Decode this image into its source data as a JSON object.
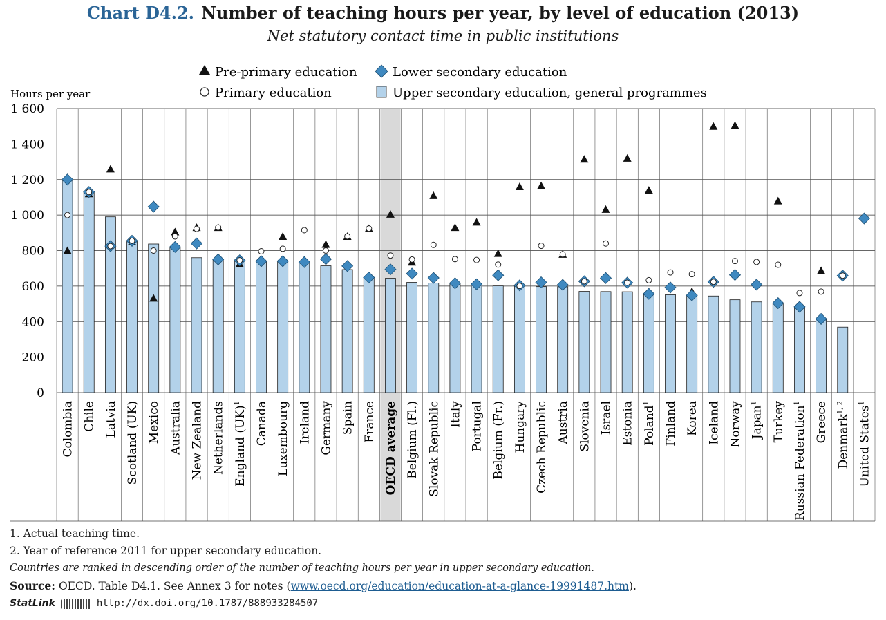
{
  "title": {
    "label": "Chart D4.2.",
    "text": "Number of teaching hours per year, by level of education (2013)"
  },
  "subtitle": "Net statutory contact time in public institutions",
  "legend": {
    "pre_primary": "Pre-primary education",
    "primary": "Primary education",
    "lower_secondary": "Lower secondary education",
    "upper_secondary": "Upper secondary education, general programmes"
  },
  "colors": {
    "bar": "#b3d2ea",
    "bar_stroke": "#1f1f1f",
    "diamond": "#3f89c0",
    "highlight": "#d9d9d9",
    "title_accent": "#2a6496"
  },
  "chart_data": {
    "type": "bar",
    "ylabel": "Hours per year",
    "ylim": [
      0,
      1600
    ],
    "yticks": [
      "0",
      "200",
      "400",
      "600",
      "800",
      "1 000",
      "1 200",
      "1 400",
      "1 600"
    ],
    "highlight_category": "OECD average",
    "categories": [
      {
        "name": "Colombia",
        "sup": ""
      },
      {
        "name": "Chile",
        "sup": ""
      },
      {
        "name": "Latvia",
        "sup": ""
      },
      {
        "name": "Scotland (UK)",
        "sup": ""
      },
      {
        "name": "Mexico",
        "sup": ""
      },
      {
        "name": "Australia",
        "sup": ""
      },
      {
        "name": "New Zealand",
        "sup": ""
      },
      {
        "name": "Netherlands",
        "sup": ""
      },
      {
        "name": "England (UK)",
        "sup": "1"
      },
      {
        "name": "Canada",
        "sup": ""
      },
      {
        "name": "Luxembourg",
        "sup": ""
      },
      {
        "name": "Ireland",
        "sup": ""
      },
      {
        "name": "Germany",
        "sup": ""
      },
      {
        "name": "Spain",
        "sup": ""
      },
      {
        "name": "France",
        "sup": ""
      },
      {
        "name": "OECD average",
        "sup": ""
      },
      {
        "name": "Belgium (Fl.)",
        "sup": ""
      },
      {
        "name": "Slovak Republic",
        "sup": ""
      },
      {
        "name": "Italy",
        "sup": ""
      },
      {
        "name": "Portugal",
        "sup": ""
      },
      {
        "name": "Belgium (Fr.)",
        "sup": ""
      },
      {
        "name": "Hungary",
        "sup": ""
      },
      {
        "name": "Czech Republic",
        "sup": ""
      },
      {
        "name": "Austria",
        "sup": ""
      },
      {
        "name": "Slovenia",
        "sup": ""
      },
      {
        "name": "Israel",
        "sup": ""
      },
      {
        "name": "Estonia",
        "sup": ""
      },
      {
        "name": "Poland",
        "sup": "1"
      },
      {
        "name": "Finland",
        "sup": ""
      },
      {
        "name": "Korea",
        "sup": ""
      },
      {
        "name": "Iceland",
        "sup": ""
      },
      {
        "name": "Norway",
        "sup": ""
      },
      {
        "name": "Japan",
        "sup": "1"
      },
      {
        "name": "Turkey",
        "sup": ""
      },
      {
        "name": "Russian Federation",
        "sup": "1"
      },
      {
        "name": "Greece",
        "sup": ""
      },
      {
        "name": "Denmark",
        "sup": "1, 2"
      },
      {
        "name": "United States",
        "sup": "1"
      }
    ],
    "series": [
      {
        "name": "Upper secondary education, general programmes",
        "marker": "bar",
        "values": [
          1200,
          1130,
          990,
          850,
          837,
          820,
          760,
          750,
          745,
          740,
          740,
          735,
          714,
          693,
          648,
          644,
          621,
          617,
          616,
          610,
          601,
          600,
          597,
          596,
          570,
          569,
          568,
          558,
          551,
          548,
          544,
          523,
          511,
          504,
          483,
          415,
          369,
          null
        ]
      },
      {
        "name": "Lower secondary education",
        "marker": "diamond",
        "values": [
          1200,
          1130,
          825,
          855,
          1047,
          820,
          840,
          750,
          745,
          740,
          740,
          735,
          752,
          713,
          648,
          694,
          670,
          646,
          616,
          610,
          661,
          604,
          621,
          607,
          627,
          645,
          619,
          556,
          592,
          548,
          624,
          663,
          608,
          504,
          483,
          415,
          659,
          981
        ]
      },
      {
        "name": "Primary education",
        "marker": "circle",
        "values": [
          1000,
          1130,
          825,
          855,
          800,
          880,
          922,
          930,
          745,
          796,
          810,
          915,
          800,
          880,
          924,
          772,
          750,
          832,
          752,
          747,
          721,
          601,
          827,
          779,
          627,
          840,
          619,
          633,
          677,
          667,
          624,
          741,
          736,
          720,
          561,
          569,
          659,
          null
        ]
      },
      {
        "name": "Pre-primary education",
        "marker": "triangle",
        "values": [
          800,
          1120,
          1260,
          850,
          532,
          905,
          930,
          930,
          725,
          null,
          880,
          null,
          835,
          880,
          924,
          1005,
          735,
          1110,
          930,
          960,
          784,
          1160,
          1165,
          779,
          1315,
          1032,
          1320,
          1140,
          null,
          570,
          1500,
          1505,
          null,
          1080,
          null,
          687,
          null,
          null
        ]
      }
    ]
  },
  "notes": {
    "note1": "1. Actual teaching time.",
    "note2": "2. Year of reference 2011 for upper secondary education.",
    "ranking": "Countries are ranked in descending order of the number of teaching hours per year in upper secondary education.",
    "source_label": "Source:",
    "source_text": "OECD. Table D4.1. See Annex 3 for notes (",
    "source_link": "www.oecd.org/education/education-at-a-glance-19991487.htm",
    "source_end": ").",
    "statlink_label": "StatLink",
    "statlink_url": "http://dx.doi.org/10.1787/888933284507"
  }
}
